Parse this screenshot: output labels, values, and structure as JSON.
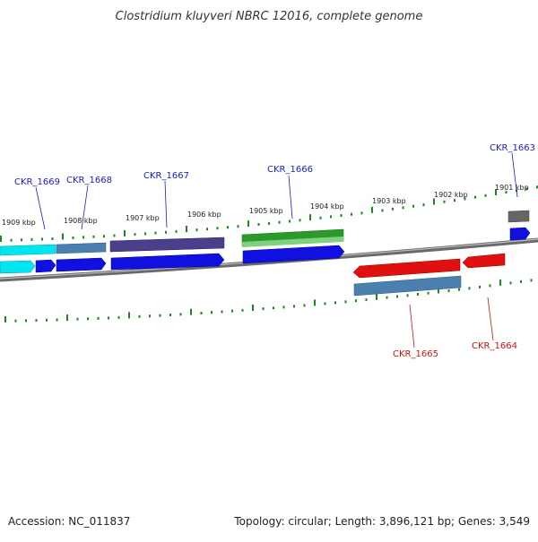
{
  "title": "Clostridium kluyveri NBRC 12016, complete genome",
  "footer": {
    "accession": "Accession: NC_011837",
    "summary": "Topology: circular; Length: 3,896,121 bp; Genes: 3,549"
  },
  "scale_labels": [
    "1909 kbp",
    "1908 kbp",
    "1907 kbp",
    "1906 kbp",
    "1905 kbp",
    "1904 kbp",
    "1903 kbp",
    "1902 kbp",
    "1901 kbp"
  ],
  "gene_labels": {
    "forward": [
      "CKR_1669",
      "CKR_1668",
      "CKR_1667",
      "CKR_1666",
      "CKR_1663"
    ],
    "reverse": [
      "CKR_1665",
      "CKR_1664"
    ]
  },
  "colors": {
    "label_forward": "#1a1acc",
    "label_reverse": "#cc1111",
    "ticks": "#1a8a1a",
    "backbone": "#777777",
    "cds_blue": "#1010e0",
    "cds_red": "#e01010",
    "cyan": "#00e5f0",
    "steel": "#4a7fb0",
    "purple": "#4a3f8a",
    "green": "#2a9a2a",
    "gray": "#666666"
  }
}
